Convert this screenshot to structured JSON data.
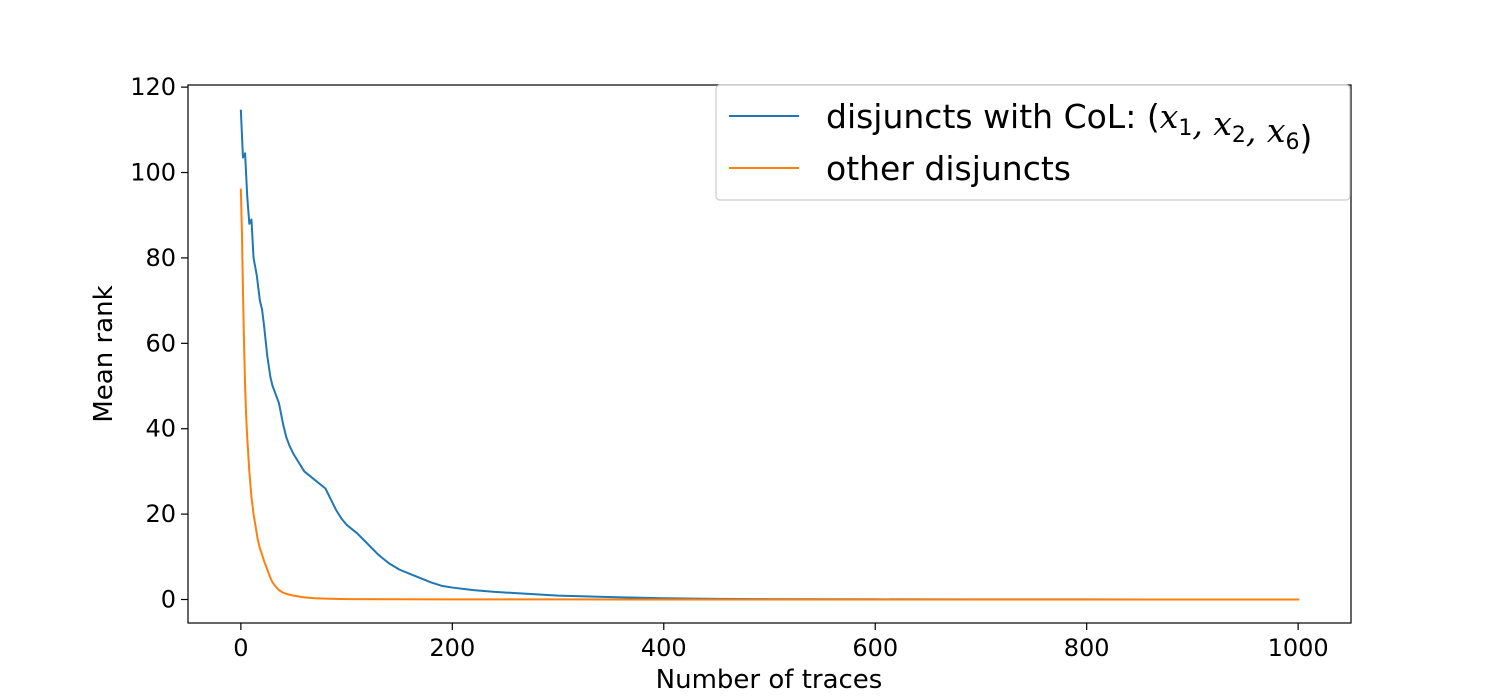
{
  "chart_data": {
    "type": "line",
    "title": "",
    "xlabel": "Number of traces",
    "ylabel": "Mean rank",
    "xlim": [
      -50,
      1050
    ],
    "ylim": [
      -5.5,
      120.5
    ],
    "xticks": [
      0,
      200,
      400,
      600,
      800,
      1000
    ],
    "yticks": [
      0,
      20,
      40,
      60,
      80,
      100,
      120
    ],
    "xtick_labels": [
      "0",
      "200",
      "400",
      "600",
      "800",
      "1000"
    ],
    "ytick_labels": [
      "0",
      "20",
      "40",
      "60",
      "80",
      "100",
      "120"
    ],
    "grid": false,
    "legend_position": "top-right",
    "series": [
      {
        "name": "disjuncts with CoL: (x1, x2, x6)",
        "legend_prefix": "disjuncts with CoL: ",
        "legend_math": [
          {
            "base": "(",
            "sub": ""
          },
          {
            "base": "x",
            "sub": "1"
          },
          {
            "base": ", x",
            "sub": "2"
          },
          {
            "base": ", x",
            "sub": "6"
          },
          {
            "base": ")",
            "sub": ""
          }
        ],
        "color": "#1f77b4",
        "x": [
          0,
          2,
          4,
          6,
          8,
          10,
          12,
          15,
          18,
          20,
          22,
          25,
          28,
          30,
          33,
          36,
          40,
          43,
          46,
          50,
          55,
          60,
          65,
          70,
          75,
          80,
          85,
          90,
          95,
          100,
          110,
          120,
          130,
          140,
          150,
          160,
          170,
          180,
          190,
          200,
          220,
          240,
          260,
          280,
          300,
          330,
          360,
          400,
          450,
          500,
          600,
          700,
          800,
          900,
          1000
        ],
        "y": [
          114.5,
          103.5,
          104.5,
          94.5,
          88,
          89,
          80,
          76,
          70,
          68,
          64,
          57,
          52,
          50,
          48,
          46,
          41,
          38,
          36,
          34,
          32,
          30,
          29,
          28,
          27,
          26,
          23.5,
          21,
          19,
          17.5,
          15.5,
          13,
          10.5,
          8.5,
          7,
          6,
          5,
          4,
          3.2,
          2.8,
          2.2,
          1.8,
          1.5,
          1.2,
          0.9,
          0.7,
          0.5,
          0.3,
          0.15,
          0.1,
          0.05,
          0.03,
          0.02,
          0.01,
          0.0
        ]
      },
      {
        "name": "other disjuncts",
        "legend_prefix": "other disjuncts",
        "legend_math": [],
        "color": "#ff7f0e",
        "x": [
          0,
          1,
          2,
          3,
          4,
          5,
          6,
          7,
          8,
          10,
          12,
          14,
          16,
          18,
          20,
          22,
          25,
          28,
          30,
          33,
          36,
          40,
          45,
          50,
          60,
          70,
          80,
          90,
          100,
          150,
          200,
          300,
          500,
          700,
          1000
        ],
        "y": [
          96,
          86,
          72,
          60,
          50,
          43,
          38,
          34,
          30,
          24,
          20,
          17,
          14,
          12,
          10.5,
          9,
          7,
          5,
          4,
          3,
          2.2,
          1.6,
          1.2,
          0.9,
          0.5,
          0.3,
          0.2,
          0.15,
          0.1,
          0.05,
          0.03,
          0.02,
          0.01,
          0.0,
          0.0
        ]
      }
    ]
  }
}
